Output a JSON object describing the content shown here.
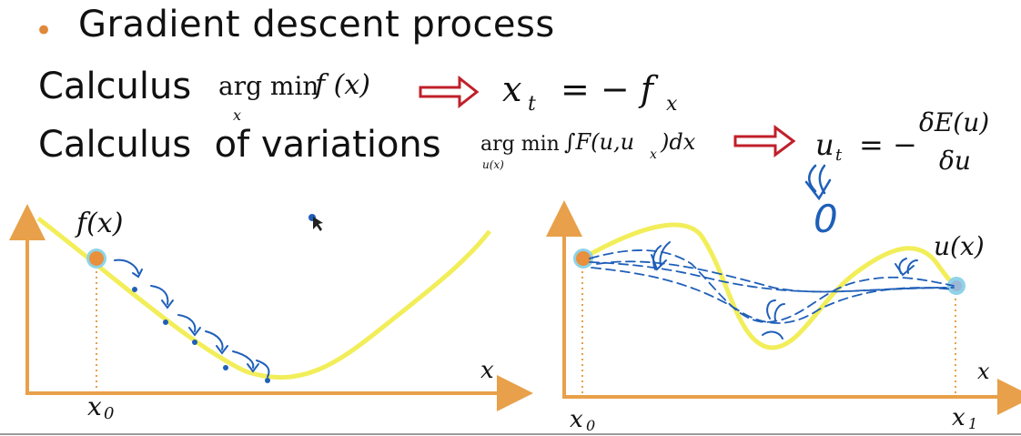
{
  "slide": {
    "bullet": "•",
    "title": "Gradient descent process",
    "row1": {
      "label": "Calculus",
      "argmin": "arg min",
      "argmin_sub": "x",
      "func": "f (x)",
      "lhs": "x",
      "lhs_sub": "t",
      "rhs": "= − f",
      "rhs_sub": "x"
    },
    "row2": {
      "label": "Calculus  of variations",
      "argmin": "arg min",
      "argmin_sub": "u(x)",
      "integral": "∫F(u,u",
      "integral_sub": "x",
      "integral_tail": ")dx",
      "lhs": "u",
      "lhs_sub": "t",
      "eq": "= −",
      "num": "δE(u)",
      "den": "δu"
    },
    "annotation": {
      "zero": "0"
    },
    "plot_left": {
      "curve_label": "f(x)",
      "x_label": "x",
      "x0_label": "x",
      "x0_sub": "0"
    },
    "plot_right": {
      "curve_label": "u(x)",
      "x_label": "x",
      "x0_label": "x",
      "x0_sub": "0",
      "x1_label": "x",
      "x1_sub": "1"
    },
    "colors": {
      "axis": "#e8a04a",
      "curve": "#f2ee5a",
      "ink": "#1f5fb8",
      "point": "#e8903c",
      "halo": "#8fd3e8",
      "arrow": "#c0202a"
    }
  }
}
